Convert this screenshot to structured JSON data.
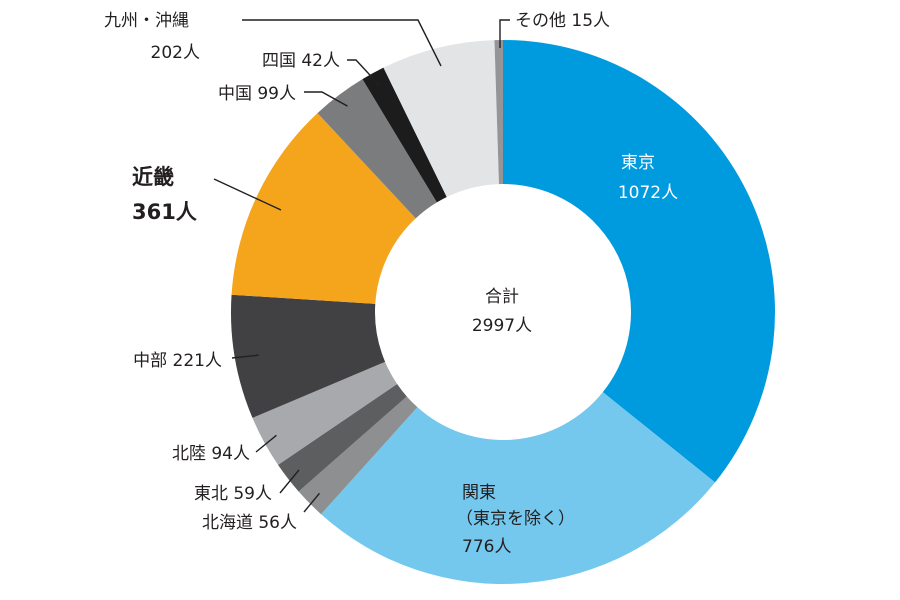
{
  "chart_data": {
    "type": "pie",
    "style": "donut",
    "total": {
      "line1": "合計",
      "line2": "2997人",
      "value": 2997
    },
    "slices": [
      {
        "label": "東京",
        "value": 1072,
        "value_text": "1072人",
        "color": "#009bde",
        "text_color": "#ffffff"
      },
      {
        "label": "関東",
        "sublabel": "（東京を除く）",
        "value": 776,
        "value_text": "776人",
        "color": "#74c8ee",
        "text_color": "#231f20"
      },
      {
        "label": "北海道",
        "value": 56,
        "value_text": "56人",
        "color": "#8e8f91"
      },
      {
        "label": "東北",
        "value": 59,
        "value_text": "59人",
        "color": "#5d5e60"
      },
      {
        "label": "北陸",
        "value": 94,
        "value_text": "94人",
        "color": "#a7a9ac"
      },
      {
        "label": "中部",
        "value": 221,
        "value_text": "221人",
        "color": "#414042"
      },
      {
        "label": "近畿",
        "value": 361,
        "value_text": "361人",
        "color": "#f5a51c",
        "emphasis": true
      },
      {
        "label": "中国",
        "value": 99,
        "value_text": "99人",
        "color": "#7b7c7e"
      },
      {
        "label": "四国",
        "value": 42,
        "value_text": "42人",
        "color": "#1c1c1c"
      },
      {
        "label": "九州・沖縄",
        "value": 202,
        "value_text": "202人",
        "color": "#e3e4e5"
      },
      {
        "label": "その他",
        "value": 15,
        "value_text": "15人",
        "color": "#939598"
      }
    ]
  }
}
